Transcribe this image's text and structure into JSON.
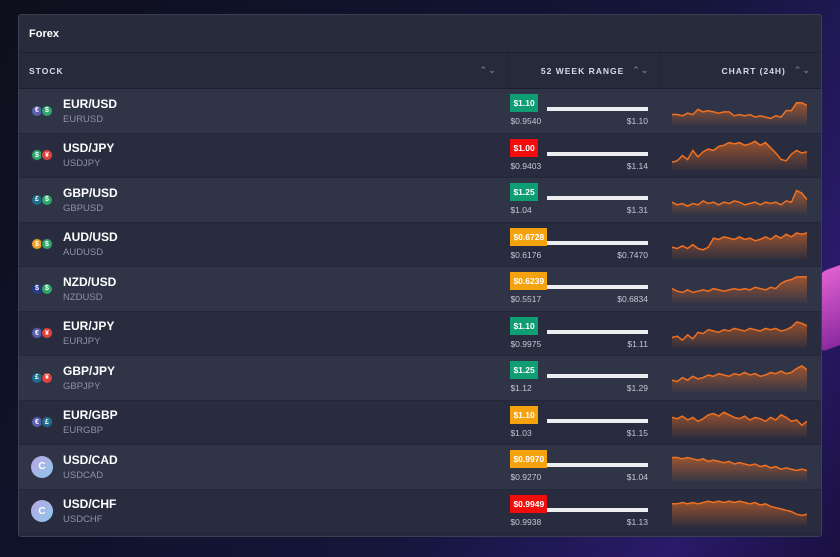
{
  "panel": {
    "title": "Forex"
  },
  "columns": {
    "stock": "STOCK",
    "range": "52 WEEK RANGE",
    "chart": "CHART (24H)",
    "sort_icon": "⌃⌄"
  },
  "colors": {
    "green": "#0f9d74",
    "red": "#f20d0d",
    "orange": "#f5a20f",
    "line": "#f07020"
  },
  "rows": [
    {
      "symbol": "EUR/USD",
      "code": "EURUSD",
      "icons": [
        {
          "g": "€",
          "c": "#5a5fb0"
        },
        {
          "g": "$",
          "c": "#2ea86a"
        }
      ],
      "price": "$1.10",
      "status": "green",
      "low": "$0.9540",
      "high": "$1.10",
      "spark": [
        5,
        5,
        4,
        6,
        5,
        9,
        7,
        8,
        7,
        6,
        7,
        7,
        4,
        5,
        4,
        5,
        3,
        4,
        3,
        2,
        4,
        3,
        8,
        8,
        14,
        14,
        12
      ]
    },
    {
      "symbol": "USD/JPY",
      "code": "USDJPY",
      "icons": [
        {
          "g": "$",
          "c": "#2ea86a"
        },
        {
          "g": "¥",
          "c": "#e0413c"
        }
      ],
      "price": "$1.00",
      "status": "red",
      "low": "$0.9403",
      "high": "$1.14",
      "spark": [
        3,
        4,
        8,
        5,
        12,
        7,
        11,
        13,
        12,
        15,
        16,
        18,
        17,
        18,
        16,
        17,
        19,
        16,
        18,
        14,
        10,
        5,
        4,
        9,
        12,
        10,
        11
      ]
    },
    {
      "symbol": "GBP/USD",
      "code": "GBPUSD",
      "icons": [
        {
          "g": "£",
          "c": "#1f6d8c"
        },
        {
          "g": "$",
          "c": "#2ea86a"
        }
      ],
      "price": "$1.25",
      "status": "green",
      "low": "$1.04",
      "high": "$1.31",
      "spark": [
        6,
        4,
        5,
        3,
        5,
        4,
        7,
        5,
        6,
        4,
        6,
        5,
        7,
        6,
        4,
        5,
        6,
        4,
        6,
        5,
        6,
        4,
        7,
        6,
        15,
        13,
        8
      ]
    },
    {
      "symbol": "AUD/USD",
      "code": "AUDUSD",
      "icons": [
        {
          "g": "$",
          "c": "#f0a020"
        },
        {
          "g": "$",
          "c": "#2ea86a"
        }
      ],
      "price": "$0.6728",
      "status": "orange",
      "low": "$0.6176",
      "high": "$0.7470",
      "spark": [
        6,
        5,
        7,
        5,
        8,
        5,
        4,
        6,
        13,
        12,
        14,
        13,
        12,
        14,
        12,
        13,
        11,
        12,
        14,
        12,
        15,
        13,
        16,
        14,
        17,
        16,
        17
      ]
    },
    {
      "symbol": "NZD/USD",
      "code": "NZDUSD",
      "icons": [
        {
          "g": "$",
          "c": "#2a3a8a"
        },
        {
          "g": "$",
          "c": "#2ea86a"
        }
      ],
      "price": "$0.6239",
      "status": "orange",
      "low": "$0.5517",
      "high": "$0.6834",
      "spark": [
        8,
        6,
        5,
        7,
        5,
        6,
        7,
        6,
        8,
        7,
        6,
        7,
        8,
        7,
        8,
        7,
        9,
        8,
        7,
        9,
        8,
        12,
        14,
        15,
        17,
        17,
        17
      ]
    },
    {
      "symbol": "EUR/JPY",
      "code": "EURJPY",
      "icons": [
        {
          "g": "€",
          "c": "#5a5fb0"
        },
        {
          "g": "¥",
          "c": "#e0413c"
        }
      ],
      "price": "$1.10",
      "status": "green",
      "low": "$0.9975",
      "high": "$1.11",
      "spark": [
        5,
        6,
        3,
        7,
        4,
        9,
        8,
        11,
        10,
        9,
        11,
        10,
        12,
        11,
        10,
        12,
        11,
        10,
        12,
        11,
        12,
        10,
        11,
        13,
        17,
        16,
        14
      ]
    },
    {
      "symbol": "GBP/JPY",
      "code": "GBPJPY",
      "icons": [
        {
          "g": "£",
          "c": "#1f6d8c"
        },
        {
          "g": "¥",
          "c": "#e0413c"
        }
      ],
      "price": "$1.25",
      "status": "green",
      "low": "$1.12",
      "high": "$1.29",
      "spark": [
        6,
        5,
        8,
        6,
        9,
        7,
        8,
        10,
        9,
        11,
        10,
        9,
        11,
        10,
        12,
        10,
        11,
        9,
        10,
        12,
        11,
        13,
        11,
        12,
        15,
        17,
        14
      ]
    },
    {
      "symbol": "EUR/GBP",
      "code": "EURGBP",
      "icons": [
        {
          "g": "€",
          "c": "#5a5fb0"
        },
        {
          "g": "£",
          "c": "#1f6d8c"
        }
      ],
      "price": "$1.10",
      "status": "orange",
      "low": "$1.03",
      "high": "$1.15",
      "spark": [
        12,
        11,
        13,
        10,
        12,
        9,
        11,
        14,
        15,
        13,
        16,
        14,
        12,
        11,
        13,
        10,
        12,
        11,
        9,
        12,
        10,
        14,
        12,
        9,
        10,
        6,
        9
      ]
    },
    {
      "symbol": "USD/CAD",
      "code": "USDCAD",
      "icons": [
        {
          "g": "C",
          "c": "big"
        }
      ],
      "price": "$0.9970",
      "status": "orange",
      "low": "$0.9270",
      "high": "$1.04",
      "spark": [
        15,
        15,
        14,
        15,
        14,
        13,
        14,
        12,
        13,
        12,
        11,
        12,
        10,
        11,
        10,
        9,
        10,
        8,
        9,
        7,
        8,
        6,
        7,
        6,
        5,
        6,
        5
      ]
    },
    {
      "symbol": "USD/CHF",
      "code": "USDCHF",
      "icons": [
        {
          "g": "C",
          "c": "big"
        }
      ],
      "price": "$0.9949",
      "status": "red",
      "low": "$0.9938",
      "high": "$1.13",
      "spark": [
        14,
        14,
        15,
        14,
        15,
        14,
        15,
        16,
        15,
        16,
        15,
        16,
        15,
        16,
        15,
        14,
        15,
        13,
        14,
        12,
        11,
        10,
        9,
        8,
        6,
        5,
        6
      ]
    }
  ]
}
